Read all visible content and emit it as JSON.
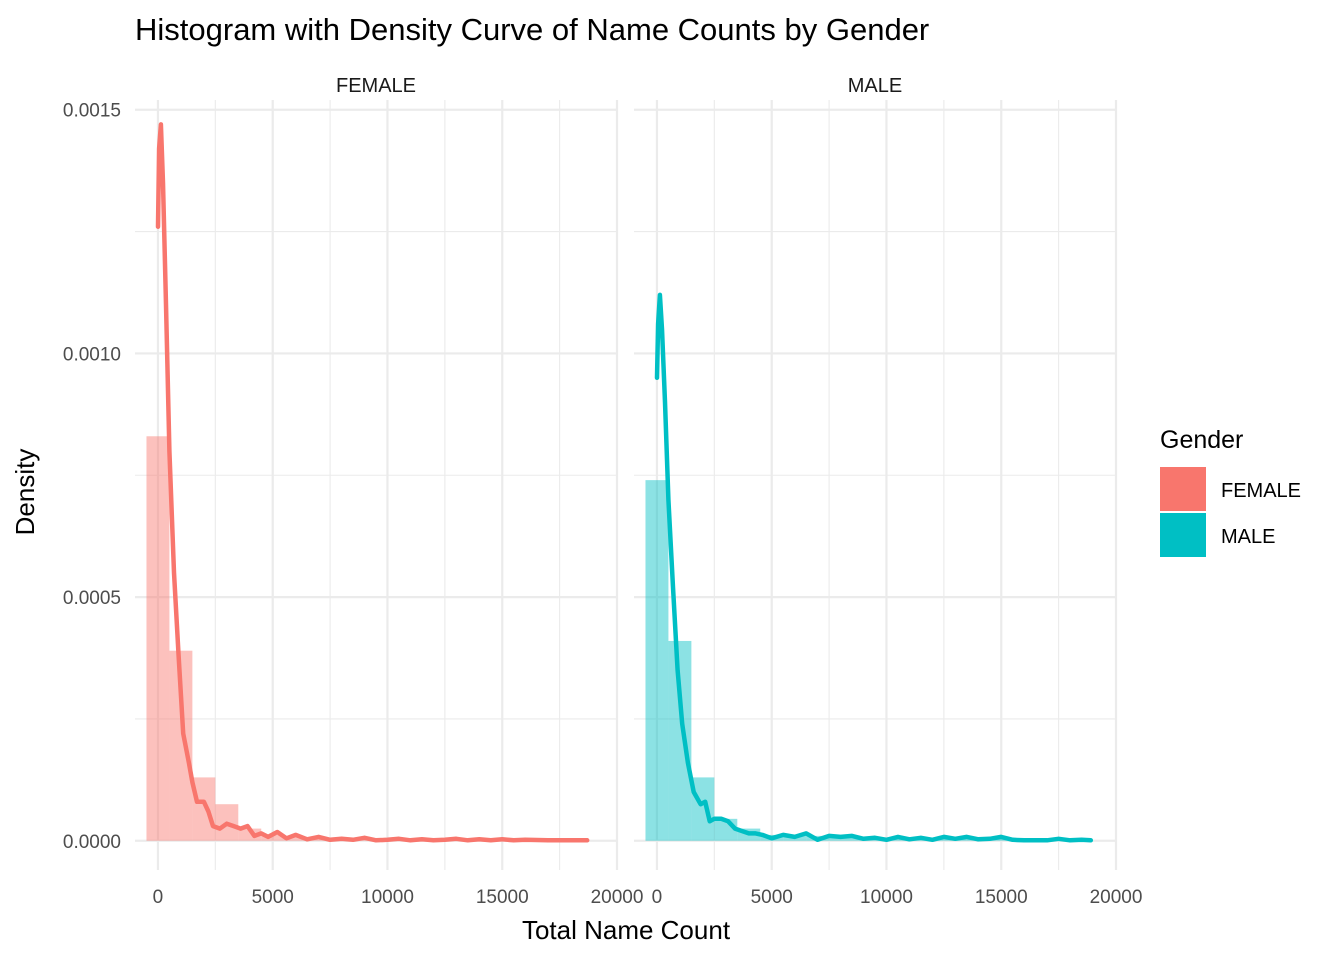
{
  "chart_data": {
    "type": "histogram-density",
    "title": "Histogram with Density Curve of Name Counts by Gender",
    "xlabel": "Total Name Count",
    "ylabel": "Density",
    "xlim": [
      -1000,
      20000
    ],
    "ylim": [
      -6e-05,
      0.00152
    ],
    "x_ticks": [
      0,
      5000,
      10000,
      15000,
      20000
    ],
    "x_tick_labels": [
      "0",
      "5000",
      "10000",
      "15000",
      "20000"
    ],
    "y_ticks": [
      0,
      0.0005,
      0.001,
      0.0015
    ],
    "y_tick_labels": [
      "0.0000",
      "0.0005",
      "0.0010",
      "0.0015"
    ],
    "grid": true,
    "legend": {
      "title": "Gender",
      "position": "right",
      "entries": [
        {
          "label": "FEMALE",
          "color": "#F8766D"
        },
        {
          "label": "MALE",
          "color": "#00BFC4"
        }
      ]
    },
    "panels": [
      {
        "name": "FEMALE",
        "color": "#F8766D",
        "bar_width": 1000,
        "bars": [
          {
            "x": 0,
            "y": 0.00083
          },
          {
            "x": 1000,
            "y": 0.00039
          },
          {
            "x": 2000,
            "y": 0.00013
          },
          {
            "x": 3000,
            "y": 7.5e-05
          },
          {
            "x": 4000,
            "y": 2.5e-05
          },
          {
            "x": 5000,
            "y": 1.2e-05
          },
          {
            "x": 6000,
            "y": 8e-06
          },
          {
            "x": 7000,
            "y": 5e-06
          },
          {
            "x": 8000,
            "y": 4e-06
          },
          {
            "x": 9000,
            "y": 4e-06
          },
          {
            "x": 10000,
            "y": 3e-06
          },
          {
            "x": 11000,
            "y": 3e-06
          },
          {
            "x": 12000,
            "y": 2e-06
          },
          {
            "x": 13000,
            "y": 2e-06
          },
          {
            "x": 14000,
            "y": 2e-06
          },
          {
            "x": 15000,
            "y": 2e-06
          },
          {
            "x": 16000,
            "y": 1e-06
          },
          {
            "x": 17000,
            "y": 1e-06
          },
          {
            "x": 18000,
            "y": 1e-06
          }
        ],
        "density": [
          [
            0,
            0.00126
          ],
          [
            50,
            0.00142
          ],
          [
            130,
            0.00147
          ],
          [
            220,
            0.00135
          ],
          [
            350,
            0.0011
          ],
          [
            500,
            0.0008
          ],
          [
            700,
            0.00055
          ],
          [
            900,
            0.00038
          ],
          [
            1100,
            0.00022
          ],
          [
            1350,
            0.00016
          ],
          [
            1500,
            0.00012
          ],
          [
            1700,
            8e-05
          ],
          [
            2000,
            8e-05
          ],
          [
            2200,
            6e-05
          ],
          [
            2400,
            3e-05
          ],
          [
            2700,
            2.5e-05
          ],
          [
            3000,
            3.5e-05
          ],
          [
            3300,
            3e-05
          ],
          [
            3600,
            2.5e-05
          ],
          [
            3900,
            3e-05
          ],
          [
            4200,
            1e-05
          ],
          [
            4500,
            1.5e-05
          ],
          [
            4800,
            8e-06
          ],
          [
            5200,
            1.8e-05
          ],
          [
            5600,
            5e-06
          ],
          [
            6000,
            1.2e-05
          ],
          [
            6500,
            3e-06
          ],
          [
            7000,
            8e-06
          ],
          [
            7500,
            2e-06
          ],
          [
            8000,
            4e-06
          ],
          [
            8500,
            2e-06
          ],
          [
            9000,
            6e-06
          ],
          [
            9500,
            1e-06
          ],
          [
            10000,
            2e-06
          ],
          [
            10500,
            4e-06
          ],
          [
            11000,
            1e-06
          ],
          [
            11500,
            3e-06
          ],
          [
            12000,
            1e-06
          ],
          [
            12500,
            2e-06
          ],
          [
            13000,
            4e-06
          ],
          [
            13500,
            1e-06
          ],
          [
            14000,
            3e-06
          ],
          [
            14500,
            1e-06
          ],
          [
            15000,
            3e-06
          ],
          [
            15500,
            1e-06
          ],
          [
            16000,
            2e-06
          ],
          [
            17000,
            1e-06
          ],
          [
            18000,
            1e-06
          ],
          [
            18700,
            1e-06
          ]
        ]
      },
      {
        "name": "MALE",
        "color": "#00BFC4",
        "bar_width": 1000,
        "bars": [
          {
            "x": 0,
            "y": 0.00074
          },
          {
            "x": 1000,
            "y": 0.00041
          },
          {
            "x": 2000,
            "y": 0.00013
          },
          {
            "x": 3000,
            "y": 4.5e-05
          },
          {
            "x": 4000,
            "y": 2.5e-05
          },
          {
            "x": 5000,
            "y": 1.2e-05
          },
          {
            "x": 6000,
            "y": 1.2e-05
          },
          {
            "x": 7000,
            "y": 1e-05
          },
          {
            "x": 8000,
            "y": 8e-06
          },
          {
            "x": 9000,
            "y": 7e-06
          },
          {
            "x": 10000,
            "y": 6e-06
          },
          {
            "x": 11000,
            "y": 5e-06
          },
          {
            "x": 12000,
            "y": 5e-06
          },
          {
            "x": 13000,
            "y": 4e-06
          },
          {
            "x": 14000,
            "y": 4e-06
          },
          {
            "x": 15000,
            "y": 4e-06
          },
          {
            "x": 16000,
            "y": 3e-06
          },
          {
            "x": 17000,
            "y": 3e-06
          },
          {
            "x": 18000,
            "y": 3e-06
          }
        ],
        "density": [
          [
            0,
            0.00095
          ],
          [
            50,
            0.00106
          ],
          [
            130,
            0.00112
          ],
          [
            220,
            0.00105
          ],
          [
            350,
            0.0009
          ],
          [
            500,
            0.0007
          ],
          [
            700,
            0.00052
          ],
          [
            900,
            0.00035
          ],
          [
            1100,
            0.00024
          ],
          [
            1350,
            0.00016
          ],
          [
            1600,
            0.0001
          ],
          [
            1900,
            7.5e-05
          ],
          [
            2100,
            8e-05
          ],
          [
            2300,
            4e-05
          ],
          [
            2500,
            4.5e-05
          ],
          [
            2800,
            4.5e-05
          ],
          [
            3100,
            4e-05
          ],
          [
            3400,
            2.5e-05
          ],
          [
            3700,
            2e-05
          ],
          [
            4000,
            1.5e-05
          ],
          [
            4300,
            1.5e-05
          ],
          [
            4600,
            1.2e-05
          ],
          [
            5000,
            5e-06
          ],
          [
            5500,
            1.2e-05
          ],
          [
            6000,
            8e-06
          ],
          [
            6500,
            1.5e-05
          ],
          [
            7000,
            2e-06
          ],
          [
            7500,
            1e-05
          ],
          [
            8000,
            8e-06
          ],
          [
            8500,
            1e-05
          ],
          [
            9000,
            4e-06
          ],
          [
            9500,
            6e-06
          ],
          [
            10000,
            2e-06
          ],
          [
            10500,
            8e-06
          ],
          [
            11000,
            3e-06
          ],
          [
            11500,
            6e-06
          ],
          [
            12000,
            2e-06
          ],
          [
            12500,
            8e-06
          ],
          [
            13000,
            4e-06
          ],
          [
            13500,
            8e-06
          ],
          [
            14000,
            3e-06
          ],
          [
            14500,
            4e-06
          ],
          [
            15000,
            8e-06
          ],
          [
            15500,
            2e-06
          ],
          [
            16000,
            1e-06
          ],
          [
            17000,
            1e-06
          ],
          [
            17500,
            4e-06
          ],
          [
            18000,
            1e-06
          ],
          [
            18500,
            2e-06
          ],
          [
            18900,
            1e-06
          ]
        ]
      }
    ]
  }
}
